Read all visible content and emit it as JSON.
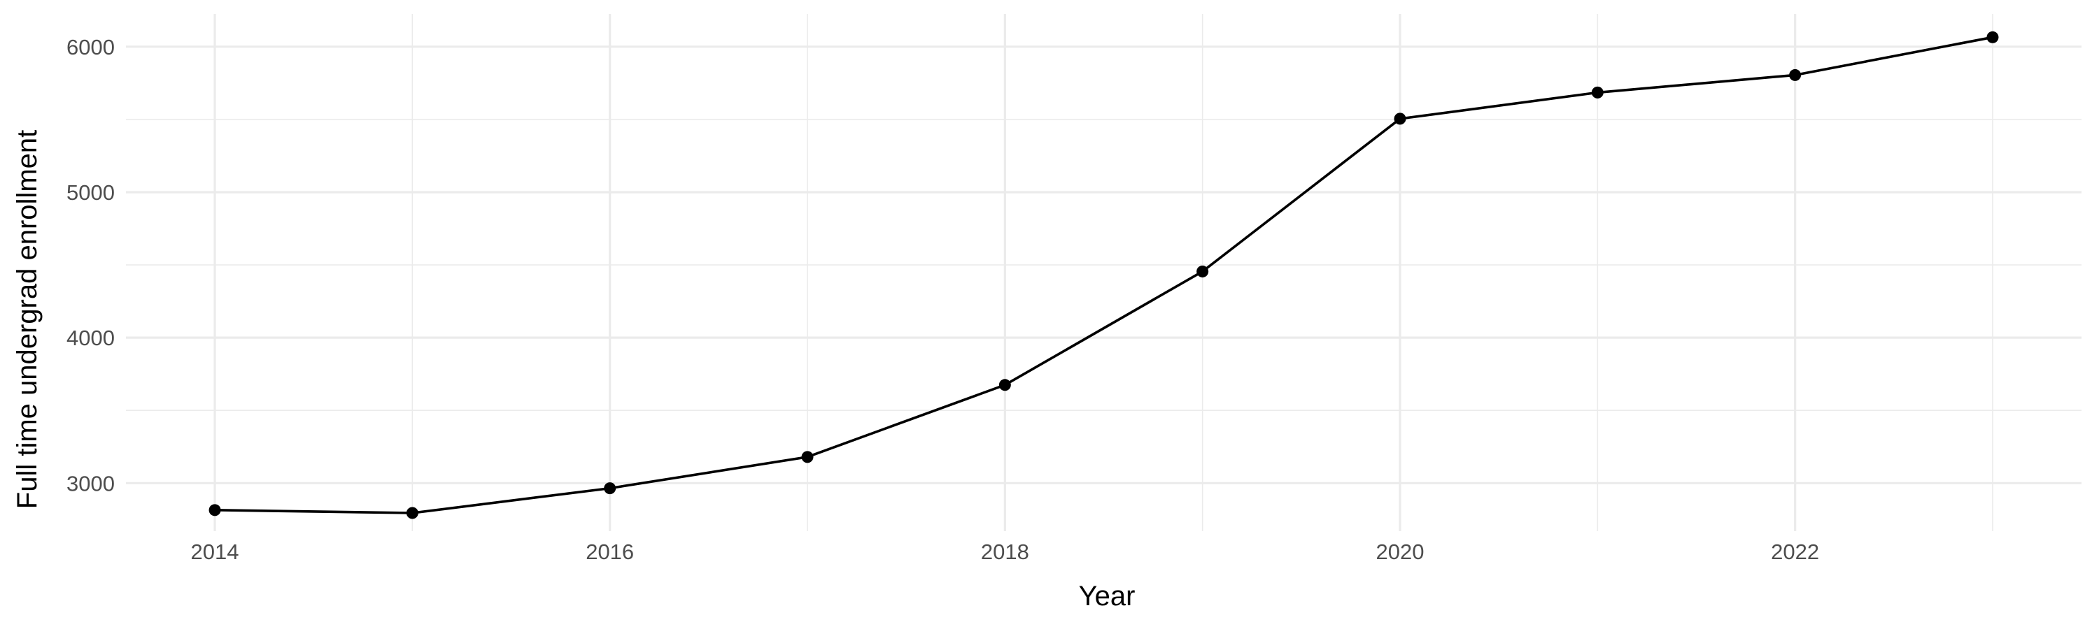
{
  "chart_data": {
    "type": "line",
    "title": "",
    "xlabel": "Year",
    "ylabel": "Full time undergrad enrollment",
    "x": [
      2014,
      2015,
      2016,
      2017,
      2018,
      2019,
      2020,
      2021,
      2022,
      2023
    ],
    "series": [
      {
        "values": [
          2815,
          2795,
          2965,
          3180,
          3675,
          4455,
          5505,
          5685,
          5805,
          6065
        ],
        "color": "#000000"
      }
    ],
    "xlim": [
      2013.55,
      2023.45
    ],
    "ylim": [
      2670,
      6225
    ],
    "x_ticks": [
      2014,
      2016,
      2018,
      2020,
      2022
    ],
    "x_tick_labels": [
      "2014",
      "2016",
      "2018",
      "2020",
      "2022"
    ],
    "y_ticks": [
      3000,
      4000,
      5000,
      6000
    ],
    "y_tick_labels": [
      "3000",
      "4000",
      "5000",
      "6000"
    ],
    "x_minor_ticks": [
      2015,
      2017,
      2019,
      2021,
      2023
    ],
    "y_minor_ticks": [
      3500,
      4500,
      5500
    ],
    "grid": true,
    "legend": "none",
    "markers": true
  }
}
